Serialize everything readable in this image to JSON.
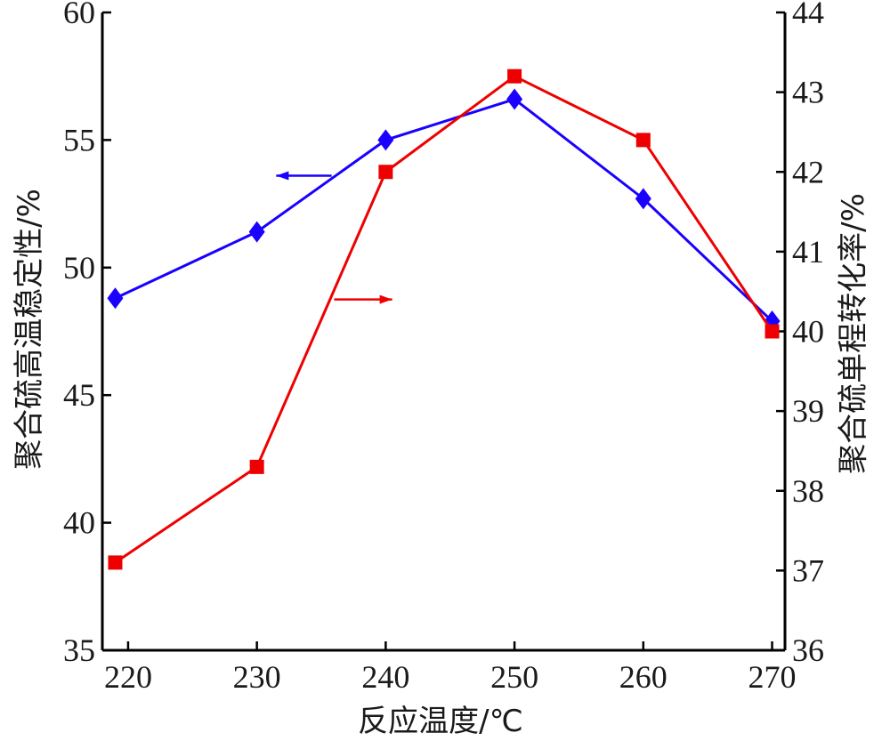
{
  "chart_data": {
    "type": "line",
    "x": [
      219,
      230,
      240,
      250,
      260,
      270
    ],
    "xlabel": "反应温度/℃",
    "xlim": [
      218,
      271
    ],
    "xticks": [
      220,
      230,
      240,
      250,
      260,
      270
    ],
    "y_left": {
      "label": "聚合硫高温稳定性/%",
      "lim": [
        35,
        60
      ],
      "ticks": [
        35,
        40,
        45,
        50,
        55,
        60
      ]
    },
    "y_right": {
      "label": "聚合硫单程转化率/%",
      "lim": [
        36,
        44
      ],
      "ticks": [
        36,
        37,
        38,
        39,
        40,
        41,
        42,
        43,
        44
      ]
    },
    "series": [
      {
        "axis": "left",
        "marker": "diamond",
        "color": "#1a00ff",
        "x": [
          219,
          230,
          240,
          250,
          260,
          270
        ],
        "values": [
          48.8,
          51.4,
          55.0,
          56.6,
          52.7,
          47.9
        ]
      },
      {
        "axis": "right",
        "marker": "square",
        "color": "#ee0000",
        "x": [
          219,
          230,
          240,
          250,
          260,
          270
        ],
        "values": [
          37.1,
          38.3,
          42.0,
          43.2,
          42.4,
          40.0
        ]
      }
    ],
    "annotations": [
      {
        "type": "arrow",
        "direction": "left",
        "series_axis": "left",
        "color": "#1a00ff",
        "x_from": 235.8,
        "x_to": 231.5,
        "y": 53.6,
        "y_axis": "left"
      },
      {
        "type": "arrow",
        "direction": "right",
        "series_axis": "right",
        "color": "#ee0000",
        "x_from": 236.0,
        "x_to": 240.5,
        "y": 40.4,
        "y_axis": "right"
      }
    ],
    "grid": false,
    "legend": "none"
  }
}
